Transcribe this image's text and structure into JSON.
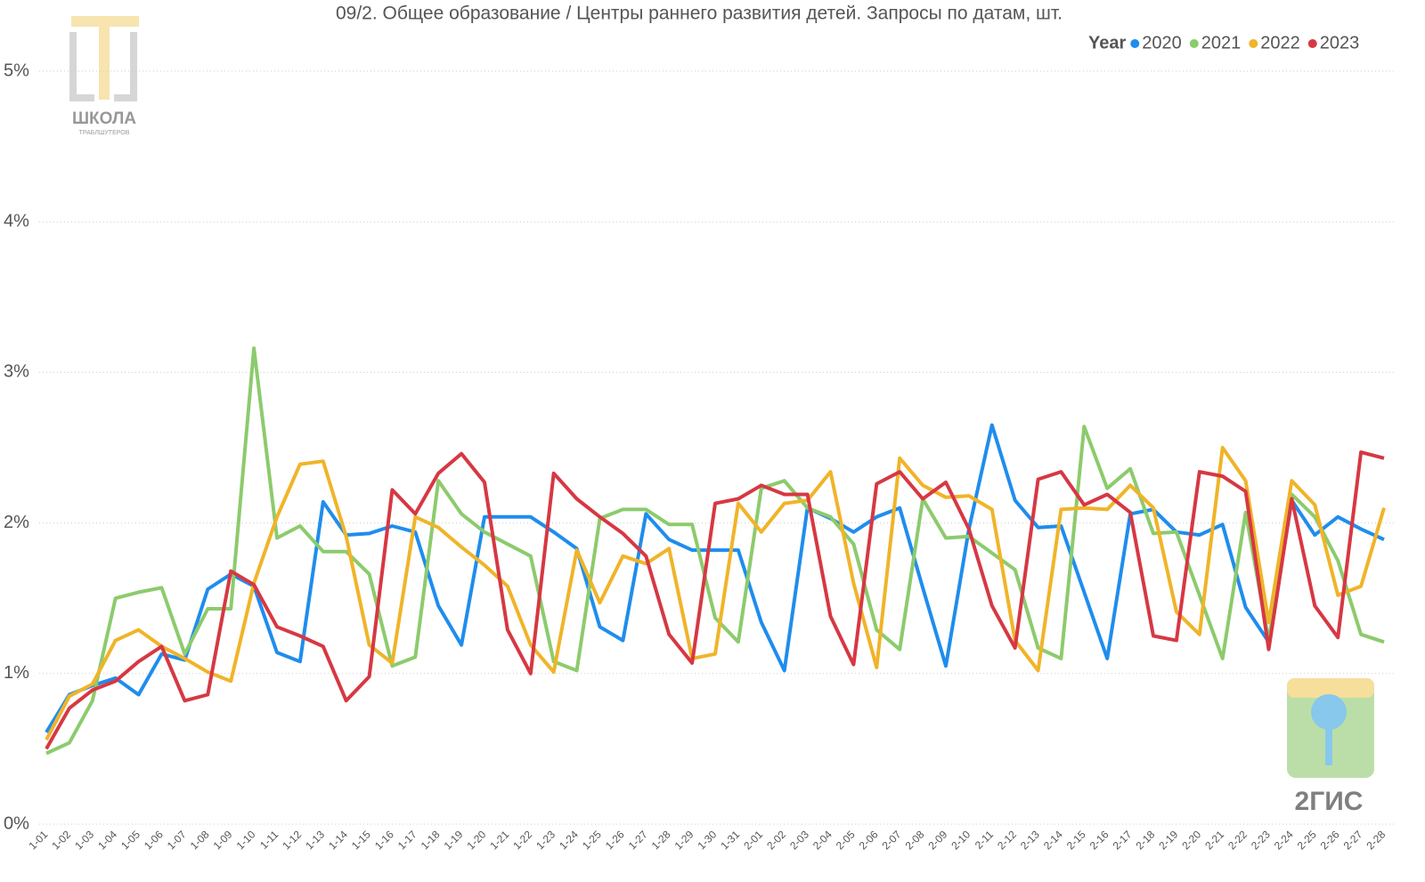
{
  "chart_data": {
    "type": "line",
    "title": "09/2. Общее образование / Центры раннего развития детей. Запросы по датам, шт.",
    "legend_title": "Year",
    "legend_position": "top-right",
    "grid": true,
    "categories": [
      "1-01",
      "1-02",
      "1-03",
      "1-04",
      "1-05",
      "1-06",
      "1-07",
      "1-08",
      "1-09",
      "1-10",
      "1-11",
      "1-12",
      "1-13",
      "1-14",
      "1-15",
      "1-16",
      "1-17",
      "1-18",
      "1-19",
      "1-20",
      "1-21",
      "1-22",
      "1-23",
      "1-24",
      "1-25",
      "1-26",
      "1-27",
      "1-28",
      "1-29",
      "1-30",
      "1-31",
      "2-01",
      "2-02",
      "2-03",
      "2-04",
      "2-05",
      "2-06",
      "2-07",
      "2-08",
      "2-09",
      "2-10",
      "2-11",
      "2-12",
      "2-13",
      "2-14",
      "2-15",
      "2-16",
      "2-17",
      "2-18",
      "2-19",
      "2-20",
      "2-21",
      "2-22",
      "2-23",
      "2-24",
      "2-25",
      "2-26",
      "2-27",
      "2-28"
    ],
    "ylim": [
      0,
      5
    ],
    "yticks": [
      {
        "value": 0,
        "label": "0%"
      },
      {
        "value": 1,
        "label": "1%"
      },
      {
        "value": 2,
        "label": "2%"
      },
      {
        "value": 3,
        "label": "3%"
      },
      {
        "value": 4,
        "label": "4%"
      },
      {
        "value": 5,
        "label": "5%"
      }
    ],
    "series": [
      {
        "name": "2020",
        "color": "#1f8ded",
        "values": [
          0.61,
          0.86,
          0.92,
          0.97,
          0.86,
          1.13,
          1.09,
          1.56,
          1.66,
          1.58,
          1.14,
          1.08,
          2.14,
          1.92,
          1.93,
          1.98,
          1.94,
          1.45,
          1.19,
          2.04,
          2.04,
          2.04,
          1.94,
          1.83,
          1.31,
          1.22,
          2.06,
          1.89,
          1.82,
          1.82,
          1.82,
          1.34,
          1.02,
          2.1,
          2.03,
          1.94,
          2.04,
          2.1,
          1.57,
          1.05,
          1.96,
          2.65,
          2.15,
          1.97,
          1.98,
          1.54,
          1.1,
          2.06,
          2.09,
          1.94,
          1.92,
          1.99,
          1.44,
          1.21,
          2.15,
          1.92,
          2.04,
          1.96,
          1.89
        ]
      },
      {
        "name": "2021",
        "color": "#8ccb6c",
        "values": [
          0.47,
          0.54,
          0.82,
          1.5,
          1.54,
          1.57,
          1.13,
          1.43,
          1.43,
          3.16,
          1.9,
          1.98,
          1.81,
          1.81,
          1.66,
          1.05,
          1.11,
          2.28,
          2.06,
          1.94,
          1.86,
          1.78,
          1.08,
          1.02,
          2.03,
          2.09,
          2.09,
          1.99,
          1.99,
          1.37,
          1.21,
          2.23,
          2.28,
          2.1,
          2.04,
          1.86,
          1.29,
          1.16,
          2.16,
          1.9,
          1.91,
          1.8,
          1.69,
          1.17,
          1.1,
          2.64,
          2.23,
          2.36,
          1.93,
          1.94,
          1.52,
          1.1,
          2.07,
          1.22,
          2.19,
          2.04,
          1.75,
          1.26,
          1.21
        ]
      },
      {
        "name": "2022",
        "color": "#f0b429",
        "values": [
          0.56,
          0.85,
          0.93,
          1.22,
          1.29,
          1.18,
          1.1,
          1.01,
          0.95,
          1.6,
          2.04,
          2.39,
          2.41,
          1.91,
          1.19,
          1.07,
          2.04,
          1.97,
          1.84,
          1.72,
          1.58,
          1.19,
          1.01,
          1.82,
          1.47,
          1.78,
          1.73,
          1.83,
          1.1,
          1.13,
          2.13,
          1.94,
          2.13,
          2.15,
          2.34,
          1.6,
          1.04,
          2.43,
          2.25,
          2.17,
          2.18,
          2.09,
          1.22,
          1.02,
          2.09,
          2.1,
          2.09,
          2.25,
          2.1,
          1.41,
          1.26,
          2.5,
          2.28,
          1.34,
          2.28,
          2.12,
          1.52,
          1.58,
          2.1
        ]
      },
      {
        "name": "2023",
        "color": "#d63843",
        "values": [
          0.5,
          0.77,
          0.89,
          0.95,
          1.08,
          1.18,
          0.82,
          0.86,
          1.68,
          1.59,
          1.31,
          1.25,
          1.18,
          0.82,
          0.98,
          2.22,
          2.06,
          2.33,
          2.46,
          2.27,
          1.29,
          1.0,
          2.33,
          2.16,
          2.04,
          1.93,
          1.78,
          1.26,
          1.07,
          2.13,
          2.16,
          2.25,
          2.19,
          2.19,
          1.38,
          1.06,
          2.26,
          2.34,
          2.16,
          2.27,
          1.96,
          1.45,
          1.17,
          2.29,
          2.34,
          2.12,
          2.19,
          2.07,
          1.25,
          1.22,
          2.34,
          2.31,
          2.21,
          1.16,
          2.16,
          1.45,
          1.24,
          2.47,
          2.43
        ]
      }
    ]
  },
  "watermarks": {
    "school": "ШКОЛА",
    "school_sub": "ТРАБЛШУТЕРОВ",
    "gis": "2ГИС"
  }
}
